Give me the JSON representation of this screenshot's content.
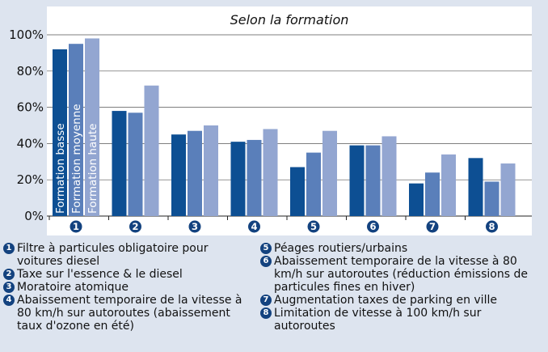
{
  "chart_data": {
    "type": "bar",
    "title": "Selon la formation",
    "categories": [
      "1",
      "2",
      "3",
      "4",
      "5",
      "6",
      "7",
      "8"
    ],
    "series": [
      {
        "name": "Formation basse",
        "color": "#0d4f93",
        "values": [
          92,
          58,
          45,
          41,
          27,
          39,
          18,
          32
        ]
      },
      {
        "name": "Formation moyenne",
        "color": "#5a7fba",
        "values": [
          95,
          57,
          47,
          42,
          35,
          39,
          24,
          19
        ]
      },
      {
        "name": "Formation haute",
        "color": "#93a6d1",
        "values": [
          98,
          72,
          50,
          48,
          47,
          44,
          34,
          29
        ]
      }
    ],
    "ylim": [
      0,
      100
    ],
    "yticks": [
      "0%",
      "20%",
      "40%",
      "60%",
      "80%",
      "100%"
    ],
    "grid": true
  },
  "legend_left": [
    {
      "num": "1",
      "text": "Filtre à particules obligatoire pour voitures diesel"
    },
    {
      "num": "2",
      "text": "Taxe sur l'essence & le diesel"
    },
    {
      "num": "3",
      "text": "Moratoire atomique"
    },
    {
      "num": "4",
      "text": "Abaissement temporaire de la vitesse à 80 km/h sur autoroutes (abaissement taux d'ozone en été)"
    }
  ],
  "legend_right": [
    {
      "num": "5",
      "text": "Péages routiers/urbains"
    },
    {
      "num": "6",
      "text": "Abaissement temporaire de la vitesse à 80 km/h sur autoroutes (réduction émissions de particules fines en hiver)"
    },
    {
      "num": "7",
      "text": "Augmentation taxes de parking en ville"
    },
    {
      "num": "8",
      "text": "Limitation de vitesse à 100 km/h sur autoroutes"
    }
  ]
}
